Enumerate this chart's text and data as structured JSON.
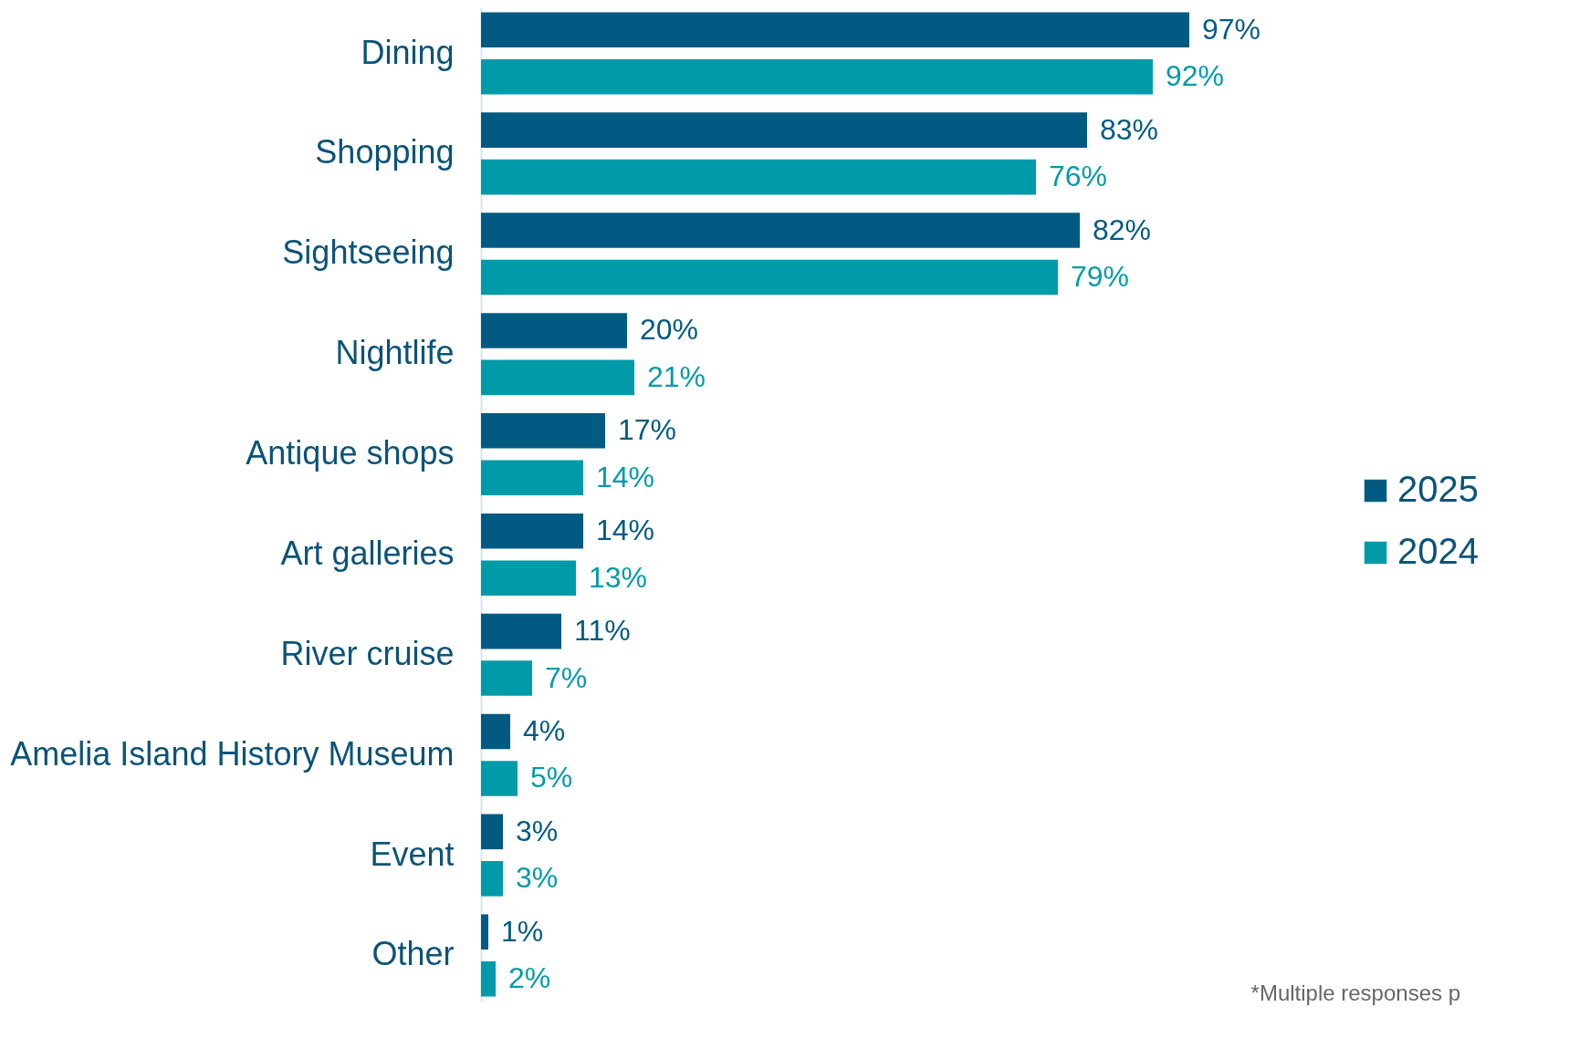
{
  "chart_data": {
    "type": "bar",
    "orientation": "horizontal",
    "legend": "right",
    "categories": [
      "Dining",
      "Shopping",
      "Sightseeing",
      "Nightlife",
      "Antique shops",
      "Art galleries",
      "River cruise",
      "Amelia Island History Museum",
      "Event",
      "Other"
    ],
    "series": [
      {
        "name": "2025",
        "color": "#005a82",
        "values": [
          97,
          83,
          82,
          20,
          17,
          14,
          11,
          4,
          3,
          1
        ],
        "value_labels": [
          "97%",
          "83%",
          "82%",
          "20%",
          "17%",
          "14%",
          "11%",
          "4%",
          "3%",
          "1%"
        ]
      },
      {
        "name": "2024",
        "color": "#009ba8",
        "values": [
          92,
          76,
          79,
          21,
          14,
          13,
          7,
          5,
          3,
          2
        ],
        "value_labels": [
          "92%",
          "76%",
          "79%",
          "21%",
          "14%",
          "13%",
          "7%",
          "5%",
          "3%",
          "2%"
        ]
      }
    ],
    "annotations": [
      "*Multiple responses p"
    ]
  }
}
